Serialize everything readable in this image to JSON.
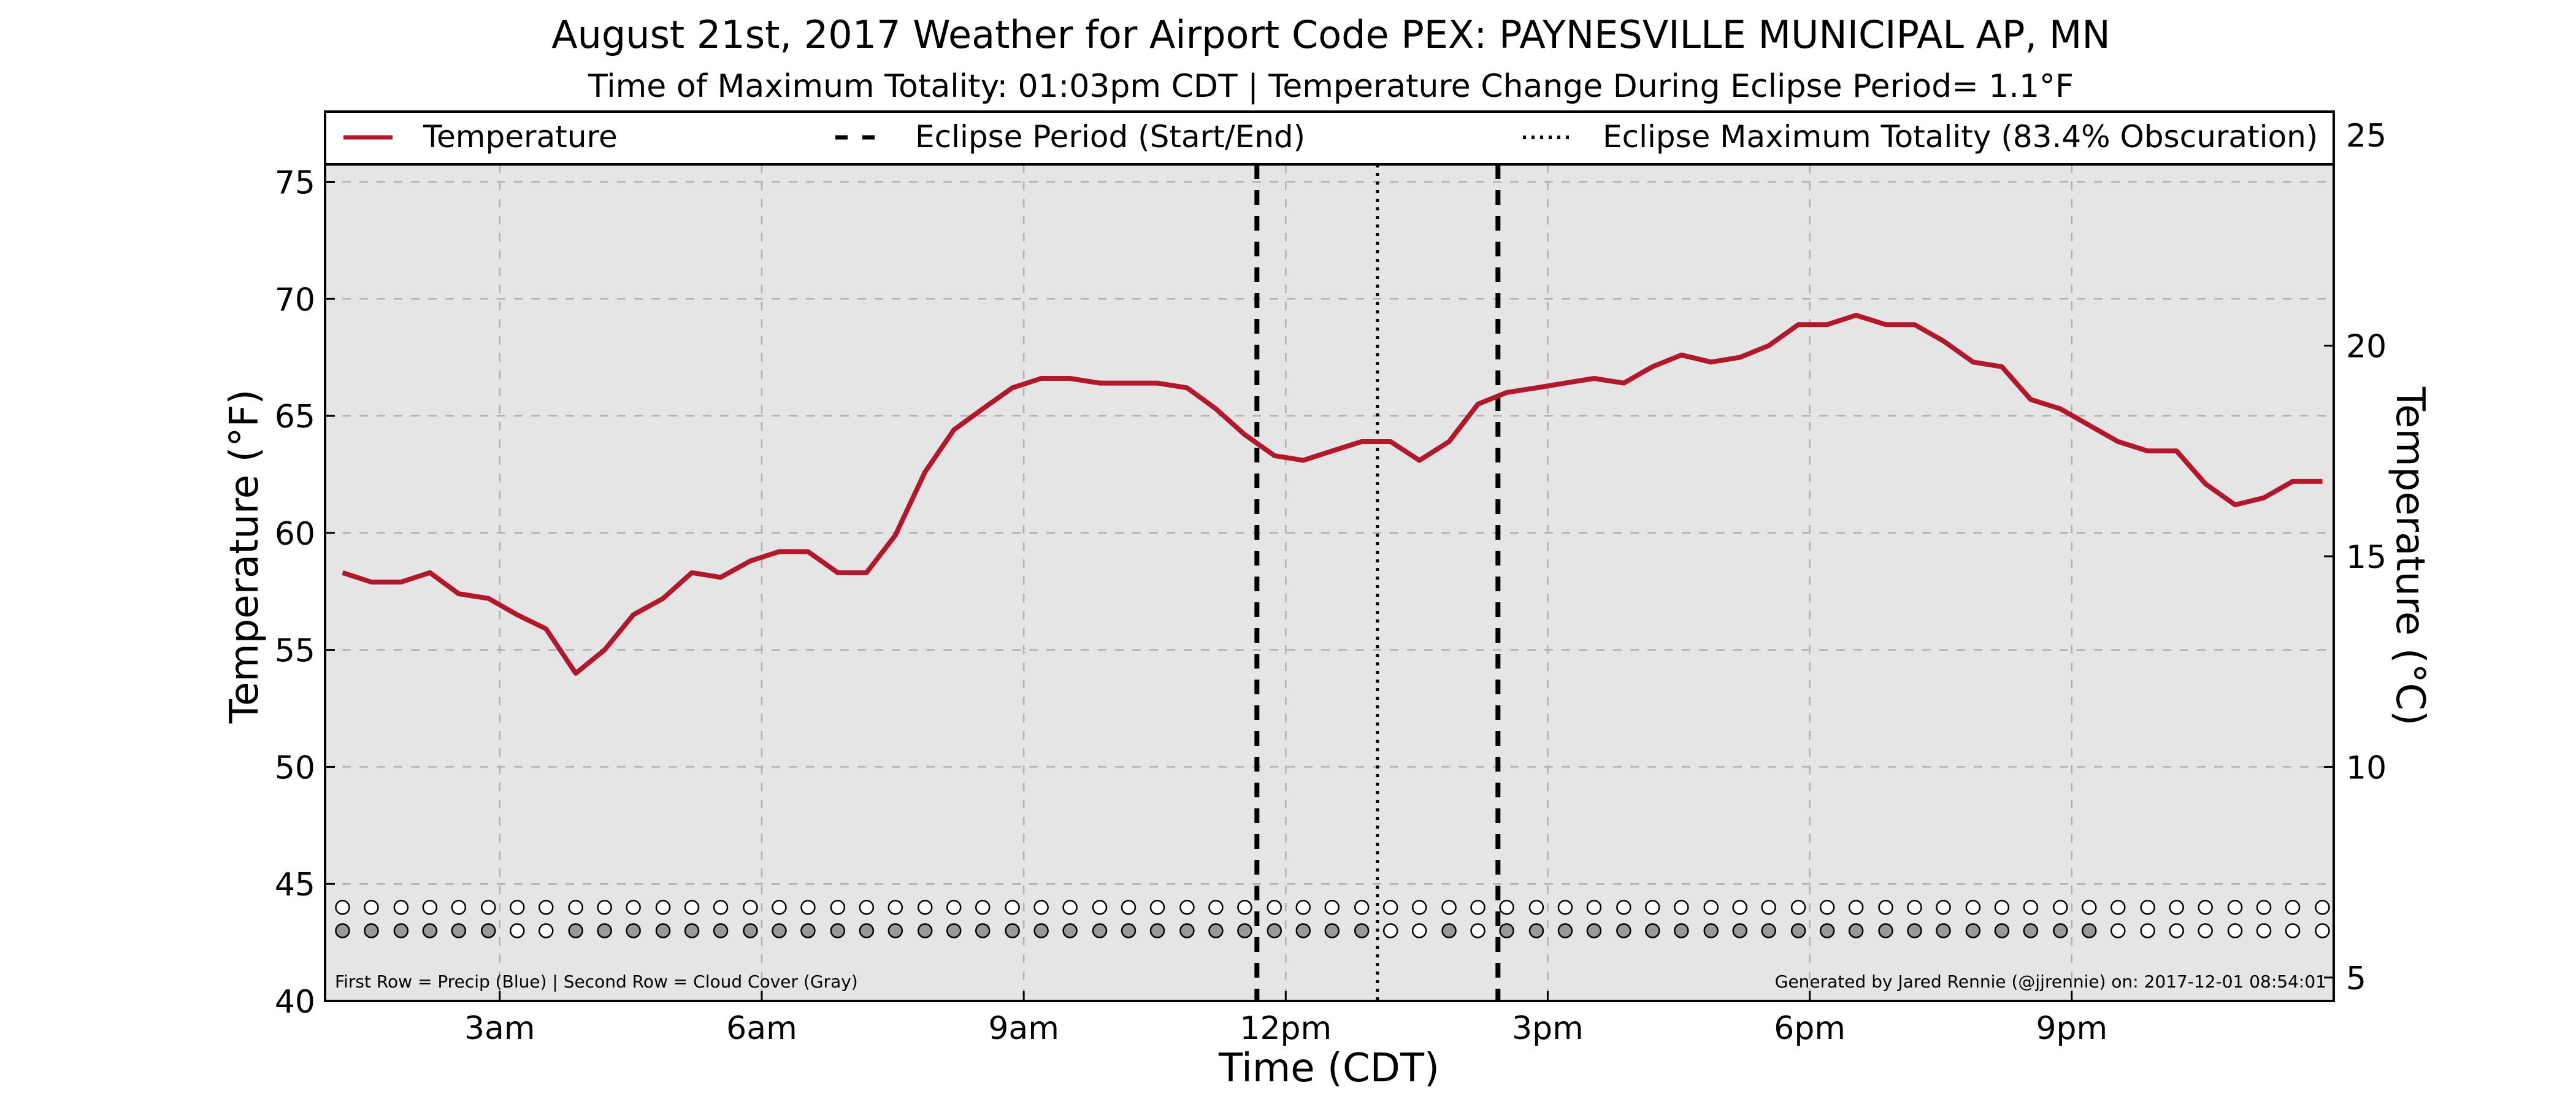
{
  "chart_data": {
    "type": "line",
    "title": "August 21st, 2017 Weather for Airport Code PEX: PAYNESVILLE MUNICIPAL AP, MN",
    "subtitle": "Time of Maximum Totality: 01:03pm CDT | Temperature Change During Eclipse Period= 1.1°F",
    "xlabel": "Time (CDT)",
    "ylabel": "Temperature (°F)",
    "ylabel_right": "Temperature (°C)",
    "xlim": [
      1.0,
      24.0
    ],
    "ylim": [
      40,
      78
    ],
    "grid": true,
    "legend_position": "top",
    "x_ticks": [
      {
        "x": 3,
        "label": "3am"
      },
      {
        "x": 6,
        "label": "6am"
      },
      {
        "x": 9,
        "label": "9am"
      },
      {
        "x": 12,
        "label": "12pm"
      },
      {
        "x": 15,
        "label": "3pm"
      },
      {
        "x": 18,
        "label": "6pm"
      },
      {
        "x": 21,
        "label": "9pm"
      }
    ],
    "y_ticks": [
      {
        "y": 40,
        "label": "40"
      },
      {
        "y": 45,
        "label": "45"
      },
      {
        "y": 50,
        "label": "50"
      },
      {
        "y": 55,
        "label": "55"
      },
      {
        "y": 60,
        "label": "60"
      },
      {
        "y": 65,
        "label": "65"
      },
      {
        "y": 70,
        "label": "70"
      },
      {
        "y": 75,
        "label": "75"
      }
    ],
    "y_ticks_right": [
      {
        "y": 41.0,
        "label": "5"
      },
      {
        "y": 50.0,
        "label": "10"
      },
      {
        "y": 59.0,
        "label": "15"
      },
      {
        "y": 68.0,
        "label": "20"
      },
      {
        "y": 77.0,
        "label": "25"
      }
    ],
    "legend": [
      {
        "label": "Temperature",
        "style": "solid"
      },
      {
        "label": "Eclipse Period (Start/End)",
        "style": "dashed"
      },
      {
        "label": "Eclipse Maximum Totality (83.4% Obscuration)",
        "style": "dotted"
      }
    ],
    "series": [
      {
        "name": "Temperature",
        "color": "#b2182b",
        "points": [
          [
            1.2,
            58.3
          ],
          [
            1.53,
            57.9
          ],
          [
            1.87,
            57.9
          ],
          [
            2.2,
            58.3
          ],
          [
            2.53,
            57.4
          ],
          [
            2.87,
            57.2
          ],
          [
            3.2,
            56.5
          ],
          [
            3.53,
            55.9
          ],
          [
            3.87,
            54.0
          ],
          [
            4.2,
            55.0
          ],
          [
            4.53,
            56.5
          ],
          [
            4.87,
            57.2
          ],
          [
            5.2,
            58.3
          ],
          [
            5.53,
            58.1
          ],
          [
            5.87,
            58.8
          ],
          [
            6.2,
            59.2
          ],
          [
            6.53,
            59.2
          ],
          [
            6.87,
            58.3
          ],
          [
            7.2,
            58.3
          ],
          [
            7.53,
            59.9
          ],
          [
            7.87,
            62.6
          ],
          [
            8.2,
            64.4
          ],
          [
            8.53,
            65.3
          ],
          [
            8.87,
            66.2
          ],
          [
            9.2,
            66.6
          ],
          [
            9.53,
            66.6
          ],
          [
            9.87,
            66.4
          ],
          [
            10.2,
            66.4
          ],
          [
            10.53,
            66.4
          ],
          [
            10.87,
            66.2
          ],
          [
            11.2,
            65.3
          ],
          [
            11.53,
            64.2
          ],
          [
            11.87,
            63.3
          ],
          [
            12.2,
            63.1
          ],
          [
            12.53,
            63.5
          ],
          [
            12.87,
            63.9
          ],
          [
            13.2,
            63.9
          ],
          [
            13.53,
            63.1
          ],
          [
            13.87,
            63.9
          ],
          [
            14.2,
            65.5
          ],
          [
            14.53,
            66.0
          ],
          [
            14.87,
            66.2
          ],
          [
            15.2,
            66.4
          ],
          [
            15.53,
            66.6
          ],
          [
            15.87,
            66.4
          ],
          [
            16.2,
            67.1
          ],
          [
            16.53,
            67.6
          ],
          [
            16.87,
            67.3
          ],
          [
            17.2,
            67.5
          ],
          [
            17.53,
            68.0
          ],
          [
            17.87,
            68.9
          ],
          [
            18.2,
            68.9
          ],
          [
            18.53,
            69.3
          ],
          [
            18.87,
            68.9
          ],
          [
            19.2,
            68.9
          ],
          [
            19.53,
            68.2
          ],
          [
            19.87,
            67.3
          ],
          [
            20.2,
            67.1
          ],
          [
            20.53,
            65.7
          ],
          [
            20.87,
            65.3
          ],
          [
            21.2,
            64.6
          ],
          [
            21.53,
            63.9
          ],
          [
            21.87,
            63.5
          ],
          [
            22.2,
            63.5
          ],
          [
            22.53,
            62.1
          ],
          [
            22.87,
            61.2
          ],
          [
            23.2,
            61.5
          ],
          [
            23.53,
            62.2
          ],
          [
            23.87,
            62.2
          ]
        ]
      }
    ],
    "eclipse_start": 11.67,
    "eclipse_max": 13.05,
    "eclipse_end": 14.43,
    "precip_row_y": 44.0,
    "cloud_row_y": 43.0,
    "indicator_times": [
      1.2,
      1.53,
      1.87,
      2.2,
      2.53,
      2.87,
      3.2,
      3.53,
      3.87,
      4.2,
      4.53,
      4.87,
      5.2,
      5.53,
      5.87,
      6.2,
      6.53,
      6.87,
      7.2,
      7.53,
      7.87,
      8.2,
      8.53,
      8.87,
      9.2,
      9.53,
      9.87,
      10.2,
      10.53,
      10.87,
      11.2,
      11.53,
      11.87,
      12.2,
      12.53,
      12.87,
      13.2,
      13.53,
      13.87,
      14.2,
      14.53,
      14.87,
      15.2,
      15.53,
      15.87,
      16.2,
      16.53,
      16.87,
      17.2,
      17.53,
      17.87,
      18.2,
      18.53,
      18.87,
      19.2,
      19.53,
      19.87,
      20.2,
      20.53,
      20.87,
      21.2,
      21.53,
      21.87,
      22.2,
      22.53,
      22.87,
      23.2,
      23.53,
      23.87
    ],
    "cloud_cover": [
      1,
      1,
      1,
      1,
      1,
      1,
      0,
      0,
      1,
      1,
      1,
      1,
      1,
      1,
      1,
      1,
      1,
      1,
      1,
      1,
      1,
      1,
      1,
      1,
      1,
      1,
      1,
      1,
      1,
      1,
      1,
      1,
      1,
      1,
      1,
      1,
      0,
      0,
      1,
      0,
      1,
      1,
      1,
      1,
      1,
      1,
      1,
      1,
      1,
      1,
      1,
      1,
      1,
      1,
      1,
      1,
      1,
      1,
      1,
      1,
      1,
      0,
      0,
      0,
      0,
      0,
      0,
      0,
      0
    ],
    "footnote_left": "First Row = Precip (Blue) | Second Row = Cloud Cover (Gray)",
    "footnote_right": "Generated by Jared Rennie (@jjrennie) on: 2017-12-01 08:54:01",
    "colors": {
      "plot_bg": "#e5e5e5",
      "temperature": "#b2182b",
      "cloud": "#999999",
      "empty": "#ffffff",
      "grid": "#b0b0b0"
    }
  }
}
